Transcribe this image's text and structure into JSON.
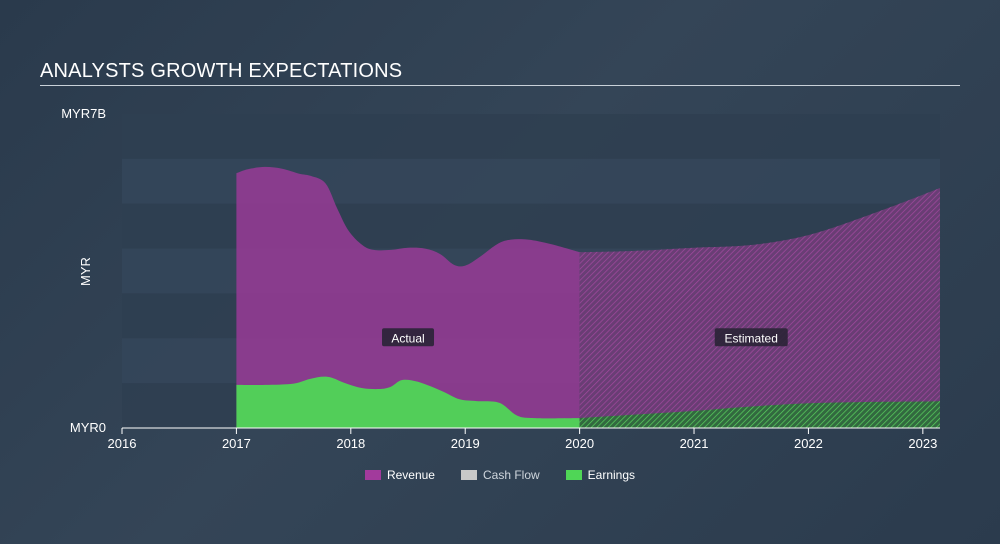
{
  "title": "ANALYSTS GROWTH EXPECTATIONS",
  "chart_data": {
    "type": "area",
    "title": "ANALYSTS GROWTH EXPECTATIONS",
    "ylabel": "MYR",
    "xlabel": "",
    "ylim": [
      0,
      7
    ],
    "xlim": [
      2016,
      2023.15
    ],
    "y_tick_labels": [
      {
        "value": 7,
        "label": "MYR7B"
      },
      {
        "value": 0,
        "label": "MYR0"
      }
    ],
    "x_ticks": [
      "2016",
      "2017",
      "2018",
      "2019",
      "2020",
      "2021",
      "2022",
      "2023"
    ],
    "actual_end": 2020,
    "annotations": {
      "actual": "Actual",
      "estimated": "Estimated"
    },
    "series": [
      {
        "name": "Revenue",
        "color": "#a23a9c",
        "points": [
          [
            2017.0,
            5.68
          ],
          [
            2017.1,
            5.77
          ],
          [
            2017.25,
            5.82
          ],
          [
            2017.4,
            5.78
          ],
          [
            2017.55,
            5.67
          ],
          [
            2017.65,
            5.62
          ],
          [
            2017.78,
            5.45
          ],
          [
            2017.88,
            4.9
          ],
          [
            2017.98,
            4.4
          ],
          [
            2018.1,
            4.08
          ],
          [
            2018.2,
            3.97
          ],
          [
            2018.35,
            3.97
          ],
          [
            2018.5,
            4.02
          ],
          [
            2018.65,
            4.0
          ],
          [
            2018.78,
            3.88
          ],
          [
            2018.9,
            3.64
          ],
          [
            2019.0,
            3.62
          ],
          [
            2019.12,
            3.8
          ],
          [
            2019.28,
            4.1
          ],
          [
            2019.4,
            4.2
          ],
          [
            2019.55,
            4.2
          ],
          [
            2019.75,
            4.1
          ],
          [
            2020.0,
            3.92
          ]
        ],
        "estimated_points": [
          [
            2020.0,
            3.92
          ],
          [
            2020.5,
            3.95
          ],
          [
            2021.0,
            4.02
          ],
          [
            2021.5,
            4.08
          ],
          [
            2022.0,
            4.3
          ],
          [
            2022.5,
            4.72
          ],
          [
            2023.0,
            5.2
          ],
          [
            2023.15,
            5.35
          ]
        ]
      },
      {
        "name": "Cash Flow",
        "color": "#c8c8c8",
        "points": [],
        "estimated_points": []
      },
      {
        "name": "Earnings",
        "color": "#4fd656",
        "points": [
          [
            2017.0,
            0.96
          ],
          [
            2017.25,
            0.96
          ],
          [
            2017.5,
            0.99
          ],
          [
            2017.65,
            1.1
          ],
          [
            2017.8,
            1.14
          ],
          [
            2017.95,
            1.0
          ],
          [
            2018.1,
            0.89
          ],
          [
            2018.25,
            0.87
          ],
          [
            2018.35,
            0.92
          ],
          [
            2018.45,
            1.07
          ],
          [
            2018.6,
            1.02
          ],
          [
            2018.8,
            0.82
          ],
          [
            2018.95,
            0.64
          ],
          [
            2019.1,
            0.6
          ],
          [
            2019.3,
            0.56
          ],
          [
            2019.45,
            0.28
          ],
          [
            2019.6,
            0.22
          ],
          [
            2020.0,
            0.22
          ]
        ],
        "estimated_points": [
          [
            2020.0,
            0.22
          ],
          [
            2020.5,
            0.3
          ],
          [
            2021.0,
            0.38
          ],
          [
            2021.5,
            0.48
          ],
          [
            2022.0,
            0.55
          ],
          [
            2022.5,
            0.58
          ],
          [
            2023.0,
            0.59
          ],
          [
            2023.15,
            0.6
          ]
        ]
      }
    ]
  },
  "legend": [
    {
      "label": "Revenue",
      "color": "#a23a9c"
    },
    {
      "label": "Cash Flow",
      "color": "#c8c8c8"
    },
    {
      "label": "Earnings",
      "color": "#4fd656"
    }
  ]
}
